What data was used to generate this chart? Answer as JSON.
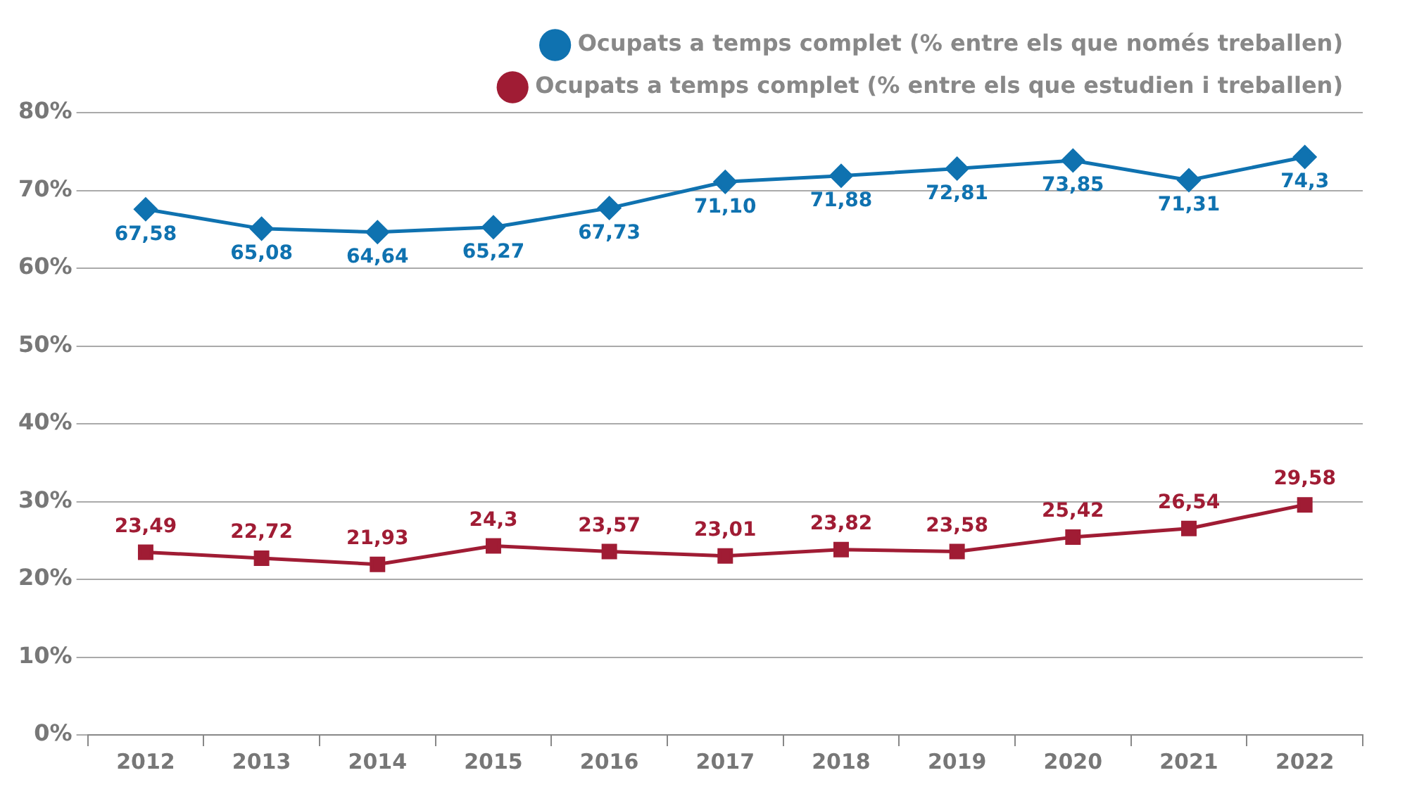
{
  "chart_data": {
    "type": "line",
    "categories": [
      "2012",
      "2013",
      "2014",
      "2015",
      "2016",
      "2017",
      "2018",
      "2019",
      "2020",
      "2021",
      "2022"
    ],
    "series": [
      {
        "name": "Ocupats a temps complet (% entre els que només treballen)",
        "color": "#0f72b0",
        "marker": "diamond",
        "values": [
          67.58,
          65.08,
          64.64,
          65.27,
          67.73,
          71.1,
          71.88,
          72.81,
          73.85,
          71.31,
          74.3
        ],
        "value_labels": [
          "67,58",
          "65,08",
          "64,64",
          "65,27",
          "67,73",
          "71,10",
          "71,88",
          "72,81",
          "73,85",
          "71,31",
          "74,3"
        ]
      },
      {
        "name": "Ocupats a temps complet (% entre els que estudien i treballen)",
        "color": "#a01c34",
        "marker": "square",
        "values": [
          23.49,
          22.72,
          21.93,
          24.3,
          23.57,
          23.01,
          23.82,
          23.58,
          25.42,
          26.54,
          29.58
        ],
        "value_labels": [
          "23,49",
          "22,72",
          "21,93",
          "24,3",
          "23,57",
          "23,01",
          "23,82",
          "23,58",
          "25,42",
          "26,54",
          "29,58"
        ]
      }
    ],
    "ylim": [
      0,
      80
    ],
    "yticks": [
      {
        "value": 0,
        "label": "0%"
      },
      {
        "value": 10,
        "label": "10%"
      },
      {
        "value": 20,
        "label": "20%"
      },
      {
        "value": 30,
        "label": "30%"
      },
      {
        "value": 40,
        "label": "40%"
      },
      {
        "value": 50,
        "label": "50%"
      },
      {
        "value": 60,
        "label": "60%"
      },
      {
        "value": 70,
        "label": "70%"
      },
      {
        "value": 80,
        "label": "80%"
      }
    ],
    "grid": "y",
    "legend": "top right",
    "line_style": "solid"
  }
}
